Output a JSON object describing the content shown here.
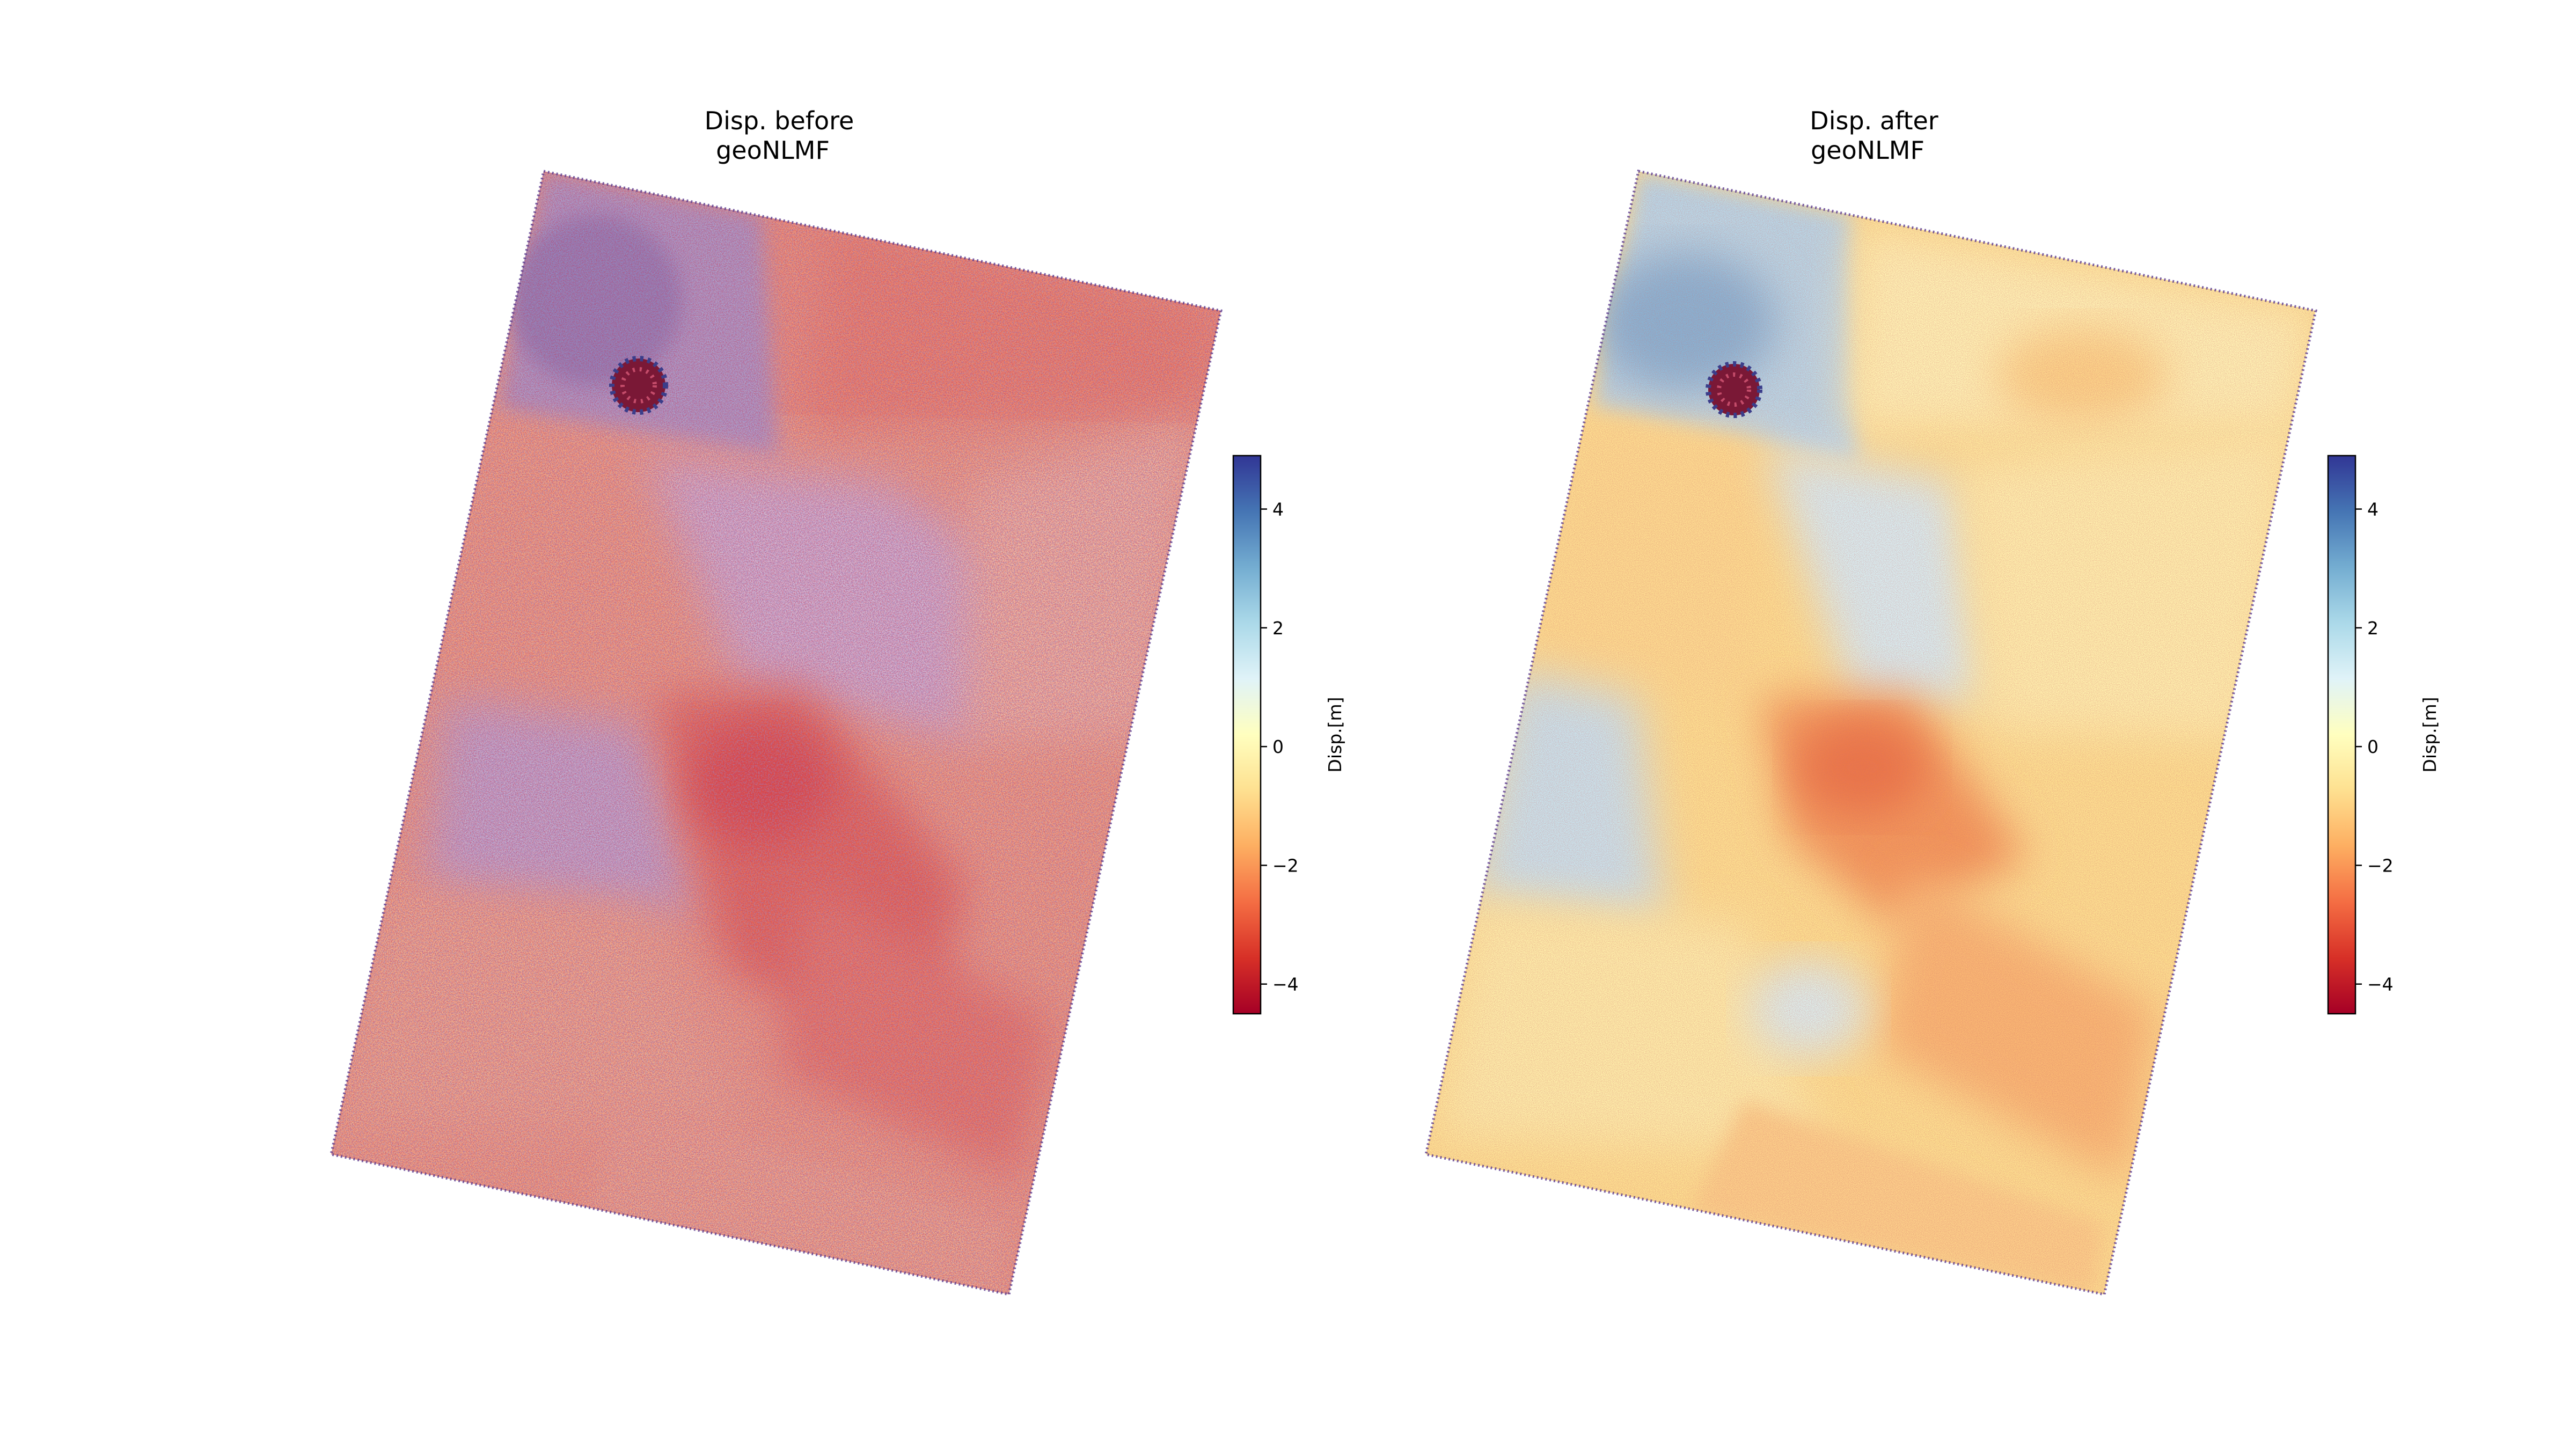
{
  "chart_data": [
    {
      "type": "heatmap",
      "title_lines": [
        "Disp. before",
        "geoNLMF"
      ],
      "colormap": "RdYlBu",
      "vmin": -4.5,
      "vmax": 4.9,
      "colorbar": {
        "label": "Disp.[m]",
        "ticks": [
          4,
          2,
          0,
          -2,
          -4
        ],
        "tick_labels": [
          "4",
          "2",
          "0",
          "−2",
          "−4"
        ]
      },
      "filtered": false
    },
    {
      "type": "heatmap",
      "title_lines": [
        "Disp. after",
        "geoNLMF"
      ],
      "colormap": "RdYlBu",
      "vmin": -4.5,
      "vmax": 4.9,
      "colorbar": {
        "label": "Disp.[m]",
        "ticks": [
          4,
          2,
          0,
          -2,
          -4
        ],
        "tick_labels": [
          "4",
          "2",
          "0",
          "−2",
          "−4"
        ]
      },
      "filtered": true
    }
  ],
  "colors": {
    "cmap_stops": [
      "#a50026",
      "#d73027",
      "#f46d43",
      "#fdae61",
      "#fee090",
      "#ffffbf",
      "#e0f3f8",
      "#abd9e9",
      "#74add1",
      "#4575b4",
      "#313695"
    ]
  }
}
